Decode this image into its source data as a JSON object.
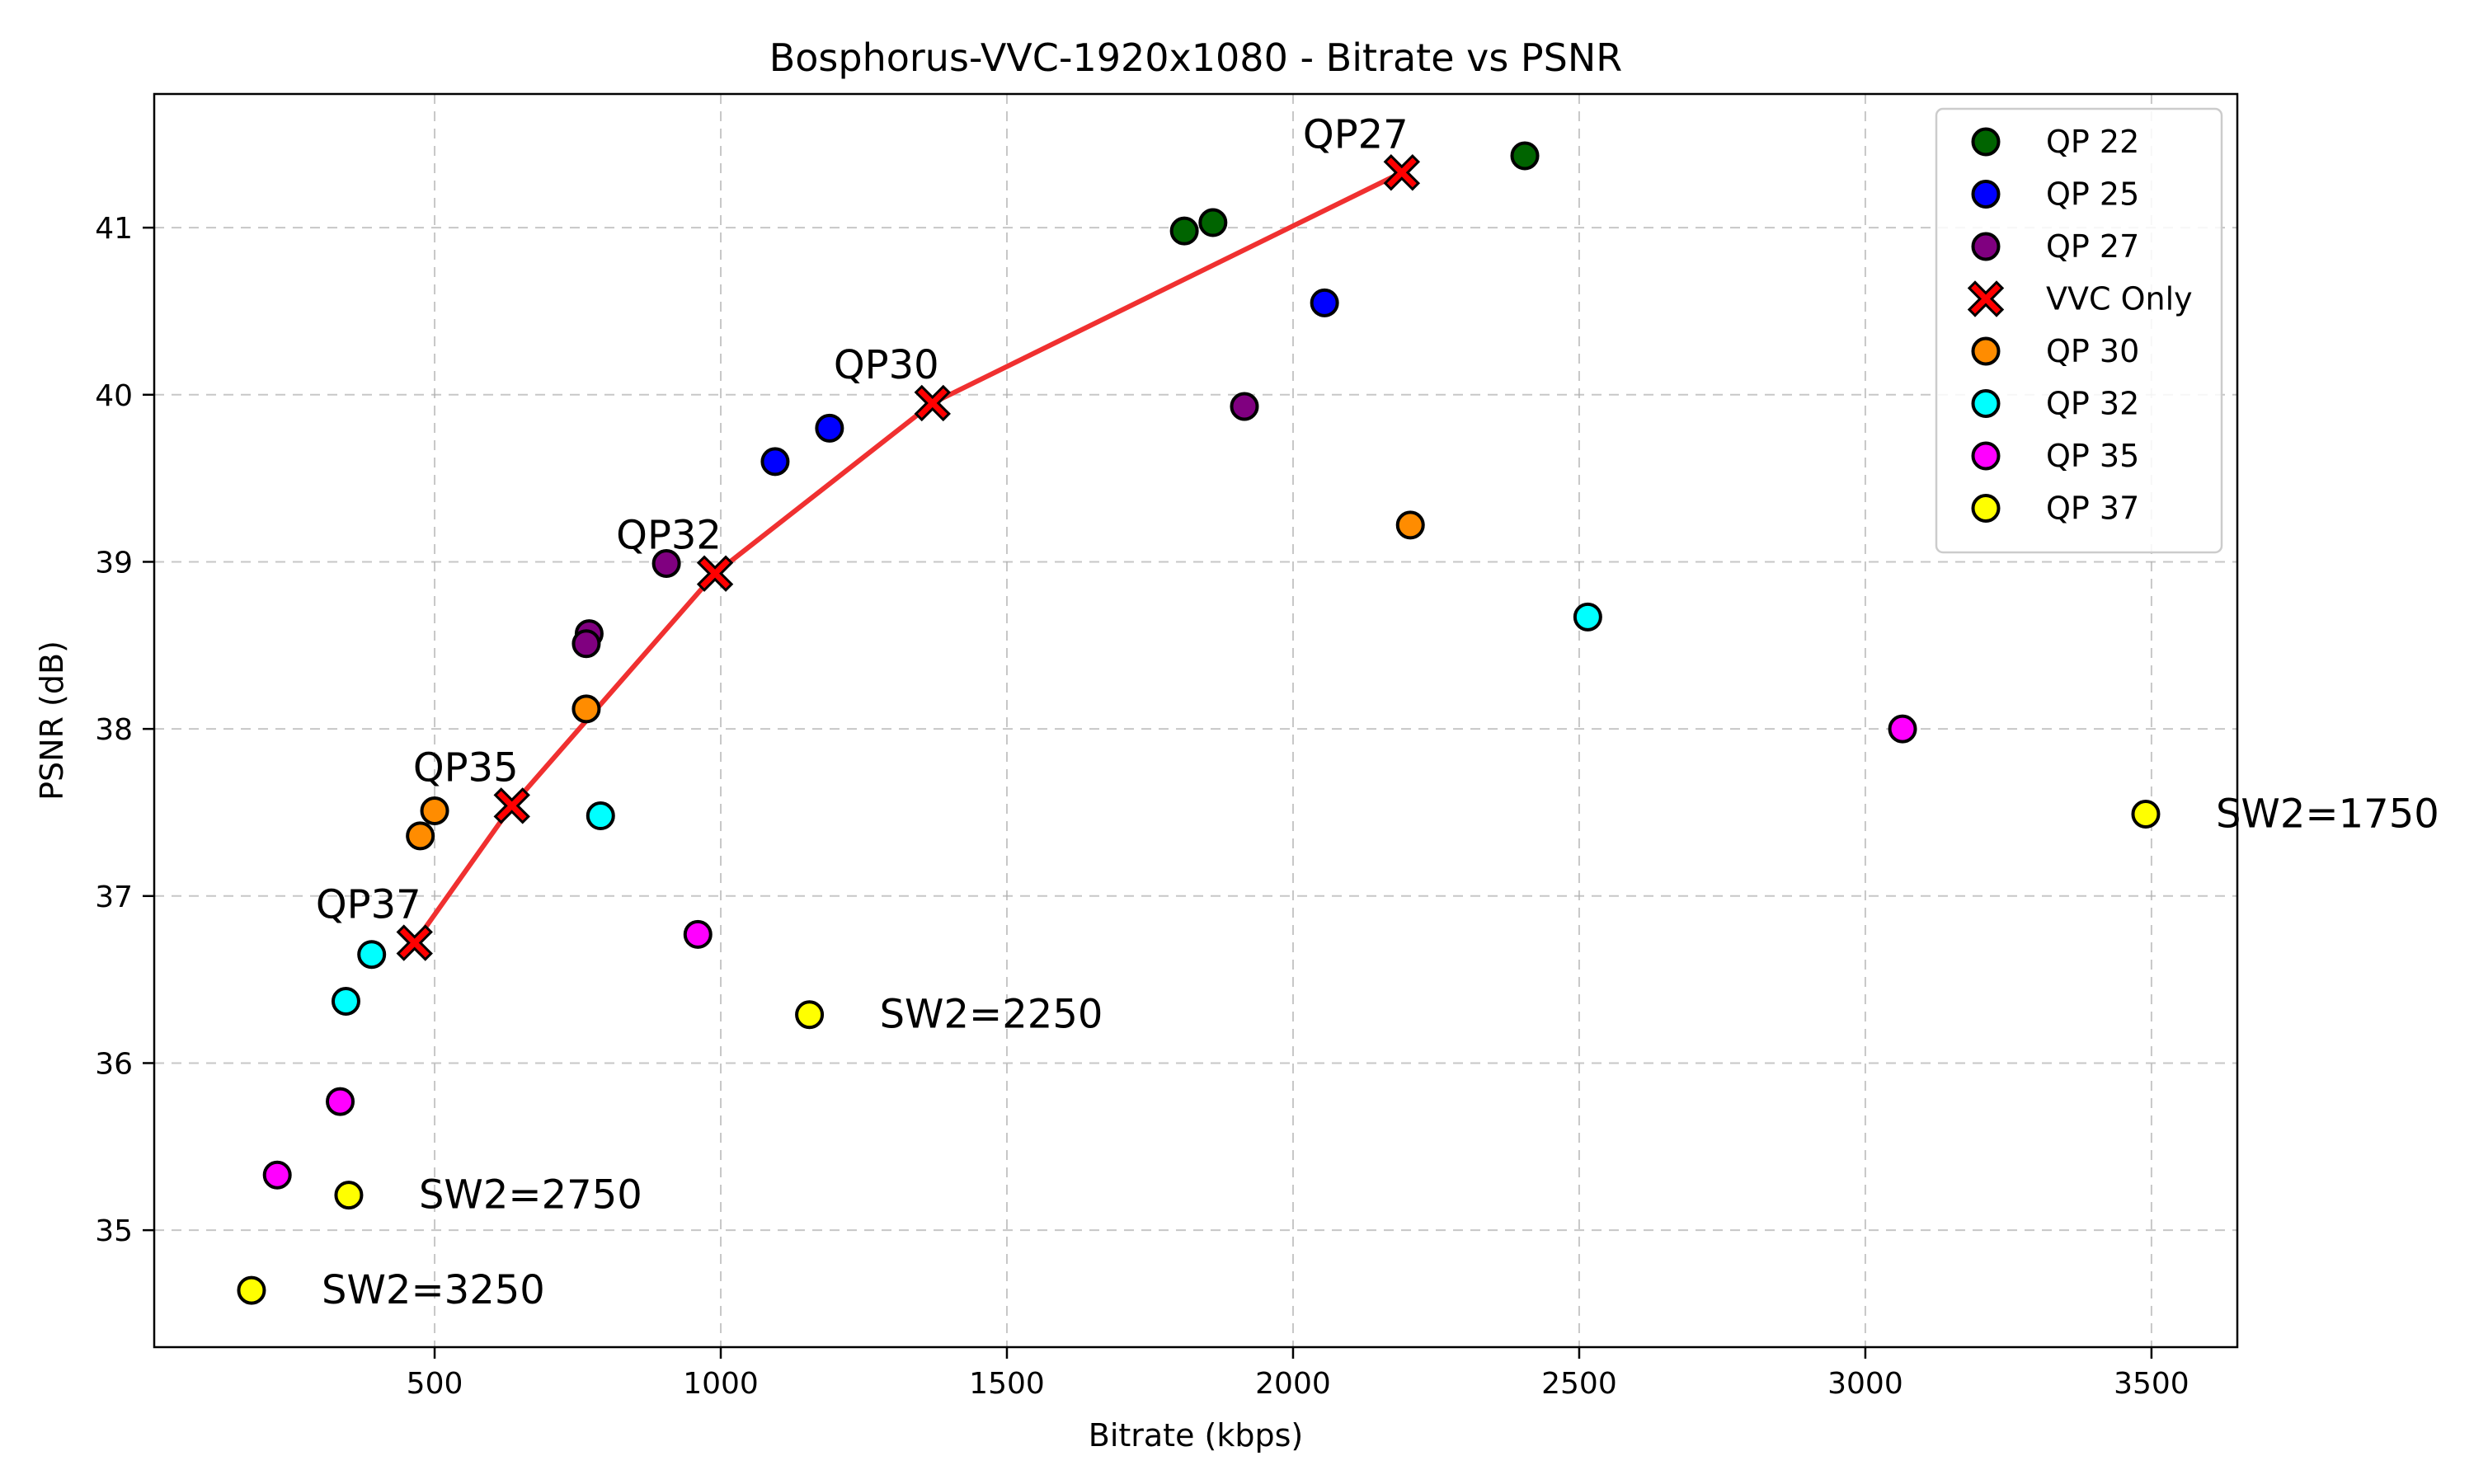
{
  "chart_data": {
    "type": "scatter",
    "title": "Bosphorus-VVC-1920x1080 - Bitrate vs PSNR",
    "xlabel": "Bitrate (kbps)",
    "ylabel": "PSNR (dB)",
    "xlim": [
      10,
      3650
    ],
    "ylim": [
      34.3,
      41.8
    ],
    "xticks": [
      500,
      1000,
      1500,
      2000,
      2500,
      3000,
      3500
    ],
    "yticks": [
      35,
      36,
      37,
      38,
      39,
      40,
      41
    ],
    "grid": true,
    "legend_position": "top-right",
    "series": [
      {
        "name": "QP 22",
        "color": "#006400",
        "marker": "circle",
        "points": [
          [
            1810,
            40.98
          ],
          [
            1860,
            41.03
          ],
          [
            2405,
            41.43
          ]
        ]
      },
      {
        "name": "QP 25",
        "color": "#0000ff",
        "marker": "circle",
        "points": [
          [
            1095,
            39.6
          ],
          [
            1190,
            39.8
          ],
          [
            2055,
            40.55
          ]
        ]
      },
      {
        "name": "QP 27",
        "color": "#800080",
        "marker": "circle",
        "points": [
          [
            770,
            38.57
          ],
          [
            765,
            38.51
          ],
          [
            905,
            38.99
          ],
          [
            1915,
            39.93
          ]
        ]
      },
      {
        "name": "VVC Only",
        "color": "#ff0000",
        "marker": "x",
        "line": true,
        "line_color": "#f03030",
        "points": [
          [
            465,
            36.72
          ],
          [
            635,
            37.54
          ],
          [
            990,
            38.93
          ],
          [
            1370,
            39.95
          ],
          [
            2190,
            41.33
          ]
        ]
      },
      {
        "name": "QP 30",
        "color": "#ff8c00",
        "marker": "circle",
        "points": [
          [
            475,
            37.36
          ],
          [
            500,
            37.51
          ],
          [
            765,
            38.12
          ],
          [
            2205,
            39.22
          ]
        ]
      },
      {
        "name": "QP 32",
        "color": "#00ffff",
        "marker": "circle",
        "points": [
          [
            345,
            36.37
          ],
          [
            390,
            36.65
          ],
          [
            790,
            37.48
          ],
          [
            2515,
            38.67
          ]
        ]
      },
      {
        "name": "QP 35",
        "color": "#ff00ff",
        "marker": "circle",
        "points": [
          [
            225,
            35.33
          ],
          [
            335,
            35.77
          ],
          [
            960,
            36.77
          ],
          [
            3065,
            38.0
          ]
        ]
      },
      {
        "name": "QP 37",
        "color": "#ffff00",
        "marker": "circle",
        "points": [
          [
            180,
            34.64
          ],
          [
            350,
            35.21
          ],
          [
            1155,
            36.29
          ],
          [
            3490,
            37.49
          ]
        ]
      }
    ],
    "annotations": [
      {
        "text": "QP27",
        "x": 2190,
        "y": 41.33
      },
      {
        "text": "QP30",
        "x": 1370,
        "y": 39.95
      },
      {
        "text": "QP32",
        "x": 990,
        "y": 38.93
      },
      {
        "text": "QP35",
        "x": 635,
        "y": 37.54
      },
      {
        "text": "QP37",
        "x": 465,
        "y": 36.72
      },
      {
        "text": "SW2=1750",
        "x": 3490,
        "y": 37.49
      },
      {
        "text": "SW2=2250",
        "x": 1155,
        "y": 36.29
      },
      {
        "text": "SW2=2750",
        "x": 350,
        "y": 35.21
      },
      {
        "text": "SW2=3250",
        "x": 180,
        "y": 34.64
      }
    ]
  }
}
